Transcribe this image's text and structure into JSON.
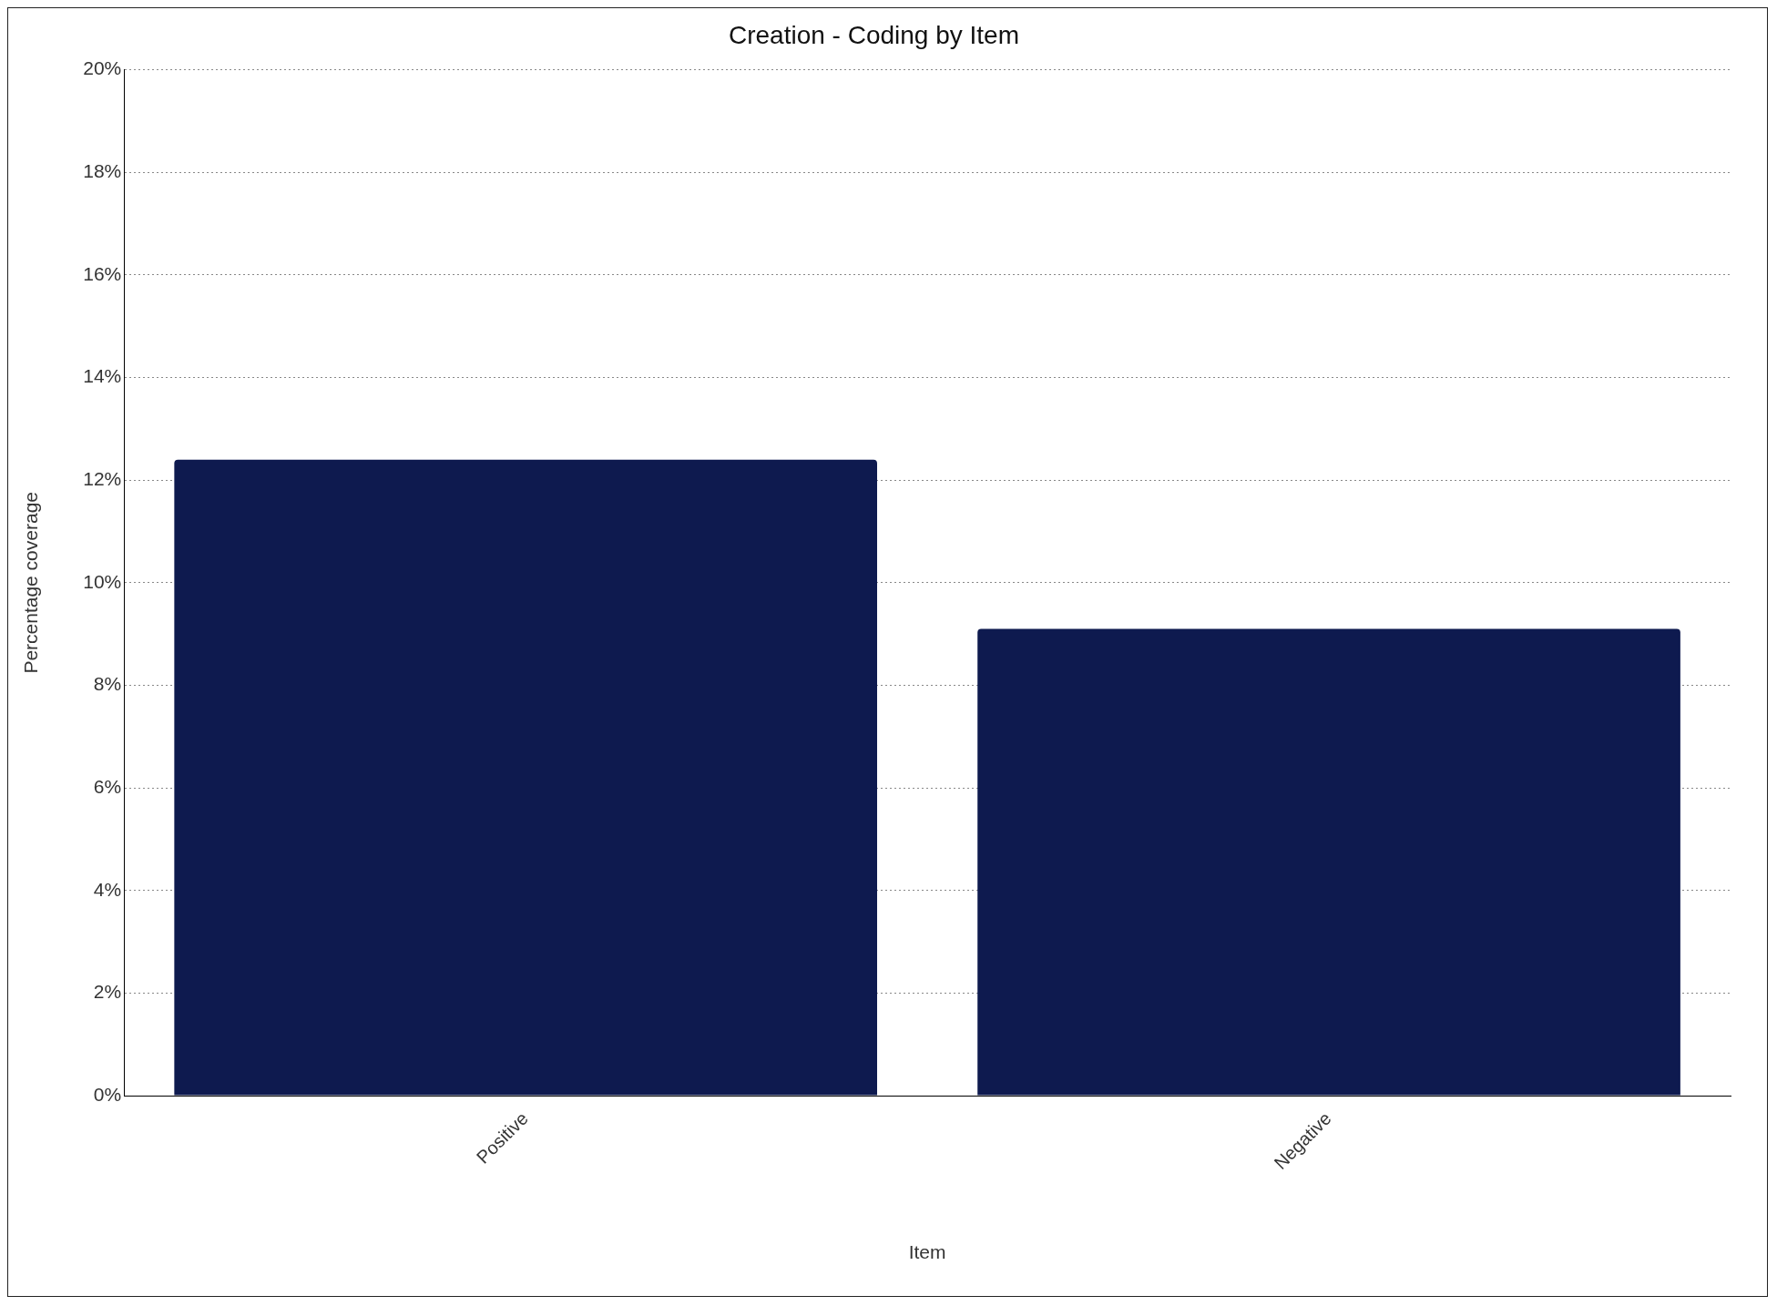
{
  "chart_data": {
    "type": "bar",
    "title": "Creation - Coding by Item",
    "xlabel": "Item",
    "ylabel": "Percentage coverage",
    "categories": [
      "Positive",
      "Negative"
    ],
    "values": [
      12.4,
      9.1
    ],
    "color": "#0e1a4f",
    "ylim": [
      0,
      20
    ],
    "yticks": [
      {
        "value": 0,
        "label": "0%"
      },
      {
        "value": 2,
        "label": "2%"
      },
      {
        "value": 4,
        "label": "4%"
      },
      {
        "value": 6,
        "label": "6%"
      },
      {
        "value": 8,
        "label": "8%"
      },
      {
        "value": 10,
        "label": "10%"
      },
      {
        "value": 12,
        "label": "12%"
      },
      {
        "value": 14,
        "label": "14%"
      },
      {
        "value": 16,
        "label": "16%"
      },
      {
        "value": 18,
        "label": "18%"
      },
      {
        "value": 20,
        "label": "20%"
      }
    ],
    "grid": "y",
    "legend": false
  }
}
